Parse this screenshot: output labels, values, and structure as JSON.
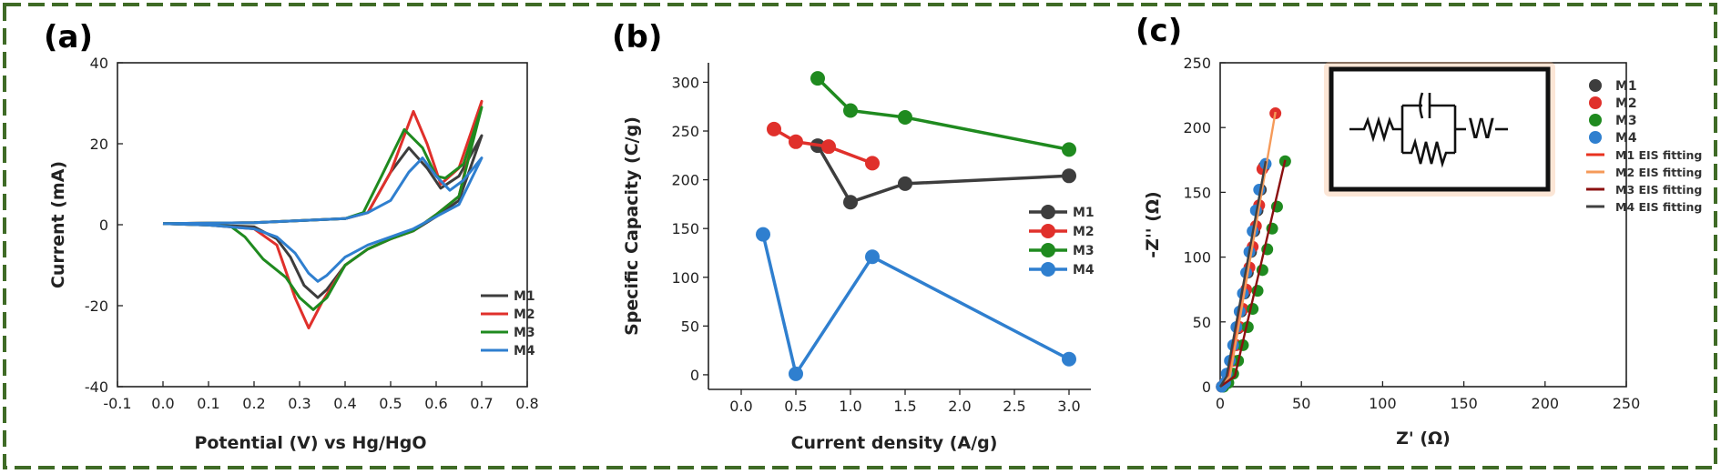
{
  "colors": {
    "frame": "#3f6b26",
    "M1": "#3d3d3d",
    "M2": "#e0302b",
    "M3": "#1f8a1f",
    "M4": "#2f7fcf",
    "M1_fit": "#e8321f",
    "M2_fit": "#f59a59",
    "M3_fit": "#8b1010",
    "M4_fit": "#404040",
    "circuit_glow": "#f6b789"
  },
  "panels": {
    "a": {
      "label": "(a)"
    },
    "b": {
      "label": "(b)"
    },
    "c": {
      "label": "(c)"
    }
  },
  "chart_data": [
    {
      "type": "line",
      "panel": "a",
      "xlabel": "Potential (V) vs Hg/HgO",
      "ylabel": "Current (mA)",
      "xlim": [
        -0.1,
        0.8
      ],
      "ylim": [
        -40,
        40
      ],
      "xticks": [
        "-0.1",
        "0.0",
        "0.1",
        "0.2",
        "0.3",
        "0.4",
        "0.5",
        "0.6",
        "0.7",
        "0.8"
      ],
      "yticks": [
        "-40",
        "-20",
        "0",
        "20",
        "40"
      ],
      "legend_position": "bottom-right",
      "series": [
        {
          "name": "M1",
          "color_key": "M1",
          "x": [
            0.0,
            0.2,
            0.4,
            0.45,
            0.5,
            0.54,
            0.58,
            0.61,
            0.65,
            0.7,
            0.7,
            0.65,
            0.6,
            0.55,
            0.5,
            0.45,
            0.4,
            0.36,
            0.34,
            0.31,
            0.28,
            0.25,
            0.2,
            0.1,
            0.0
          ],
          "y": [
            0.3,
            0.5,
            1.5,
            3.0,
            13.0,
            19.0,
            14.0,
            9.0,
            12.0,
            22.0,
            22.0,
            6.0,
            2.0,
            -1.5,
            -3.5,
            -6.0,
            -10.0,
            -16.0,
            -18.0,
            -15.0,
            -8.0,
            -3.5,
            -0.5,
            -0.1,
            0.3
          ]
        },
        {
          "name": "M2",
          "color_key": "M2",
          "x": [
            0.0,
            0.2,
            0.4,
            0.45,
            0.5,
            0.55,
            0.58,
            0.61,
            0.65,
            0.7,
            0.7,
            0.65,
            0.6,
            0.55,
            0.5,
            0.45,
            0.4,
            0.35,
            0.32,
            0.29,
            0.25,
            0.2,
            0.1,
            0.0
          ],
          "y": [
            0.3,
            0.5,
            1.5,
            3.0,
            13.0,
            28.0,
            20.0,
            10.0,
            14.0,
            30.5,
            30.5,
            7.0,
            2.5,
            -1.5,
            -3.5,
            -6.0,
            -10.0,
            -19.0,
            -25.5,
            -18.0,
            -5.0,
            -1.0,
            -0.1,
            0.3
          ]
        },
        {
          "name": "M3",
          "color_key": "M3",
          "x": [
            0.0,
            0.2,
            0.4,
            0.44,
            0.48,
            0.53,
            0.57,
            0.6,
            0.62,
            0.66,
            0.7,
            0.7,
            0.65,
            0.6,
            0.55,
            0.5,
            0.45,
            0.4,
            0.36,
            0.33,
            0.3,
            0.27,
            0.22,
            0.18,
            0.15,
            0.1,
            0.0
          ],
          "y": [
            0.3,
            0.5,
            1.5,
            3.0,
            12.0,
            23.5,
            19.0,
            12.0,
            11.5,
            15.0,
            29.0,
            29.0,
            7.0,
            2.5,
            -1.5,
            -3.5,
            -6.0,
            -10.0,
            -18.0,
            -21.0,
            -18.0,
            -13.0,
            -8.5,
            -3.0,
            -0.5,
            -0.1,
            0.3
          ]
        },
        {
          "name": "M4",
          "color_key": "M4",
          "x": [
            0.0,
            0.2,
            0.4,
            0.45,
            0.5,
            0.54,
            0.57,
            0.6,
            0.63,
            0.66,
            0.7,
            0.7,
            0.65,
            0.6,
            0.55,
            0.5,
            0.45,
            0.4,
            0.36,
            0.34,
            0.32,
            0.29,
            0.25,
            0.2,
            0.1,
            0.0
          ],
          "y": [
            0.3,
            0.5,
            1.5,
            3.0,
            6.0,
            13.0,
            16.5,
            12.0,
            8.5,
            11.0,
            16.5,
            16.5,
            5.0,
            2.0,
            -1.0,
            -3.0,
            -5.0,
            -8.0,
            -12.5,
            -14.0,
            -12.0,
            -7.0,
            -3.0,
            -1.0,
            -0.1,
            0.3
          ]
        }
      ]
    },
    {
      "type": "line",
      "panel": "b",
      "xlabel": "Current density (A/g)",
      "ylabel": "Specific Capacity (C/g)",
      "xlim": [
        -0.3,
        3.2
      ],
      "ylim": [
        -15,
        320
      ],
      "xticks": [
        "0.0",
        "0.5",
        "1.0",
        "1.5",
        "2.0",
        "2.5",
        "3.0"
      ],
      "yticks": [
        "0",
        "50",
        "100",
        "150",
        "200",
        "250",
        "300"
      ],
      "legend_position": "right",
      "series": [
        {
          "name": "M1",
          "color_key": "M1",
          "x": [
            0.7,
            1.0,
            1.5,
            3.0
          ],
          "y": [
            235,
            177,
            196,
            204
          ]
        },
        {
          "name": "M2",
          "color_key": "M2",
          "x": [
            0.3,
            0.5,
            0.8,
            1.2
          ],
          "y": [
            252,
            239,
            234,
            217
          ]
        },
        {
          "name": "M3",
          "color_key": "M3",
          "x": [
            0.7,
            1.0,
            1.5,
            3.0
          ],
          "y": [
            304,
            271,
            264,
            231
          ]
        },
        {
          "name": "M4",
          "color_key": "M4",
          "x": [
            0.2,
            0.5,
            1.2,
            3.0
          ],
          "y": [
            144,
            1,
            121,
            16
          ]
        }
      ]
    },
    {
      "type": "scatter",
      "panel": "c",
      "xlabel": "Z' (Ω)",
      "ylabel": "-Z'' (Ω)",
      "xlim": [
        0,
        250
      ],
      "ylim": [
        0,
        250
      ],
      "xticks": [
        "0",
        "50",
        "100",
        "150",
        "200",
        "250"
      ],
      "yticks": [
        "0",
        "50",
        "100",
        "150",
        "200",
        "250"
      ],
      "legend_position": "top-right",
      "circuit_text": "W",
      "series": [
        {
          "name": "M1",
          "color_key": "M1",
          "x": [
            1,
            3,
            5,
            7,
            9,
            11,
            13,
            15,
            17,
            19,
            21,
            23,
            25,
            27
          ],
          "y": [
            0,
            3,
            10,
            20,
            32,
            45,
            58,
            72,
            88,
            104,
            120,
            136,
            152,
            170
          ]
        },
        {
          "name": "M2",
          "color_key": "M2",
          "x": [
            1,
            3,
            6,
            8,
            10,
            12,
            14,
            16,
            18,
            20,
            22,
            24,
            26,
            34
          ],
          "y": [
            0,
            3,
            10,
            20,
            32,
            46,
            60,
            75,
            92,
            108,
            124,
            140,
            168,
            211
          ]
        },
        {
          "name": "M3",
          "color_key": "M3",
          "x": [
            2,
            5,
            8,
            11,
            14,
            17,
            20,
            23,
            26,
            29,
            32,
            35,
            40
          ],
          "y": [
            0,
            3,
            10,
            20,
            32,
            46,
            60,
            74,
            90,
            106,
            122,
            139,
            174
          ]
        },
        {
          "name": "M4",
          "color_key": "M4",
          "x": [
            1,
            3,
            4,
            6,
            8,
            10,
            12,
            14,
            16,
            18,
            20,
            22,
            24,
            28
          ],
          "y": [
            0,
            3,
            10,
            20,
            32,
            46,
            58,
            72,
            88,
            104,
            120,
            136,
            152,
            172
          ]
        },
        {
          "name": "M1 EIS fitting",
          "color_key": "M1_fit",
          "mode": "line",
          "x": [
            0,
            5,
            28
          ],
          "y": [
            0,
            8,
            174
          ]
        },
        {
          "name": "M2 EIS fitting",
          "color_key": "M2_fit",
          "mode": "line",
          "x": [
            0,
            6,
            34
          ],
          "y": [
            0,
            8,
            212
          ]
        },
        {
          "name": "M3 EIS fitting",
          "color_key": "M3_fit",
          "mode": "line",
          "x": [
            0,
            9,
            40
          ],
          "y": [
            0,
            8,
            175
          ]
        },
        {
          "name": "M4 EIS fitting",
          "color_key": "M4_fit",
          "mode": "line",
          "x": [
            0,
            4,
            28
          ],
          "y": [
            0,
            8,
            174
          ]
        }
      ]
    }
  ]
}
